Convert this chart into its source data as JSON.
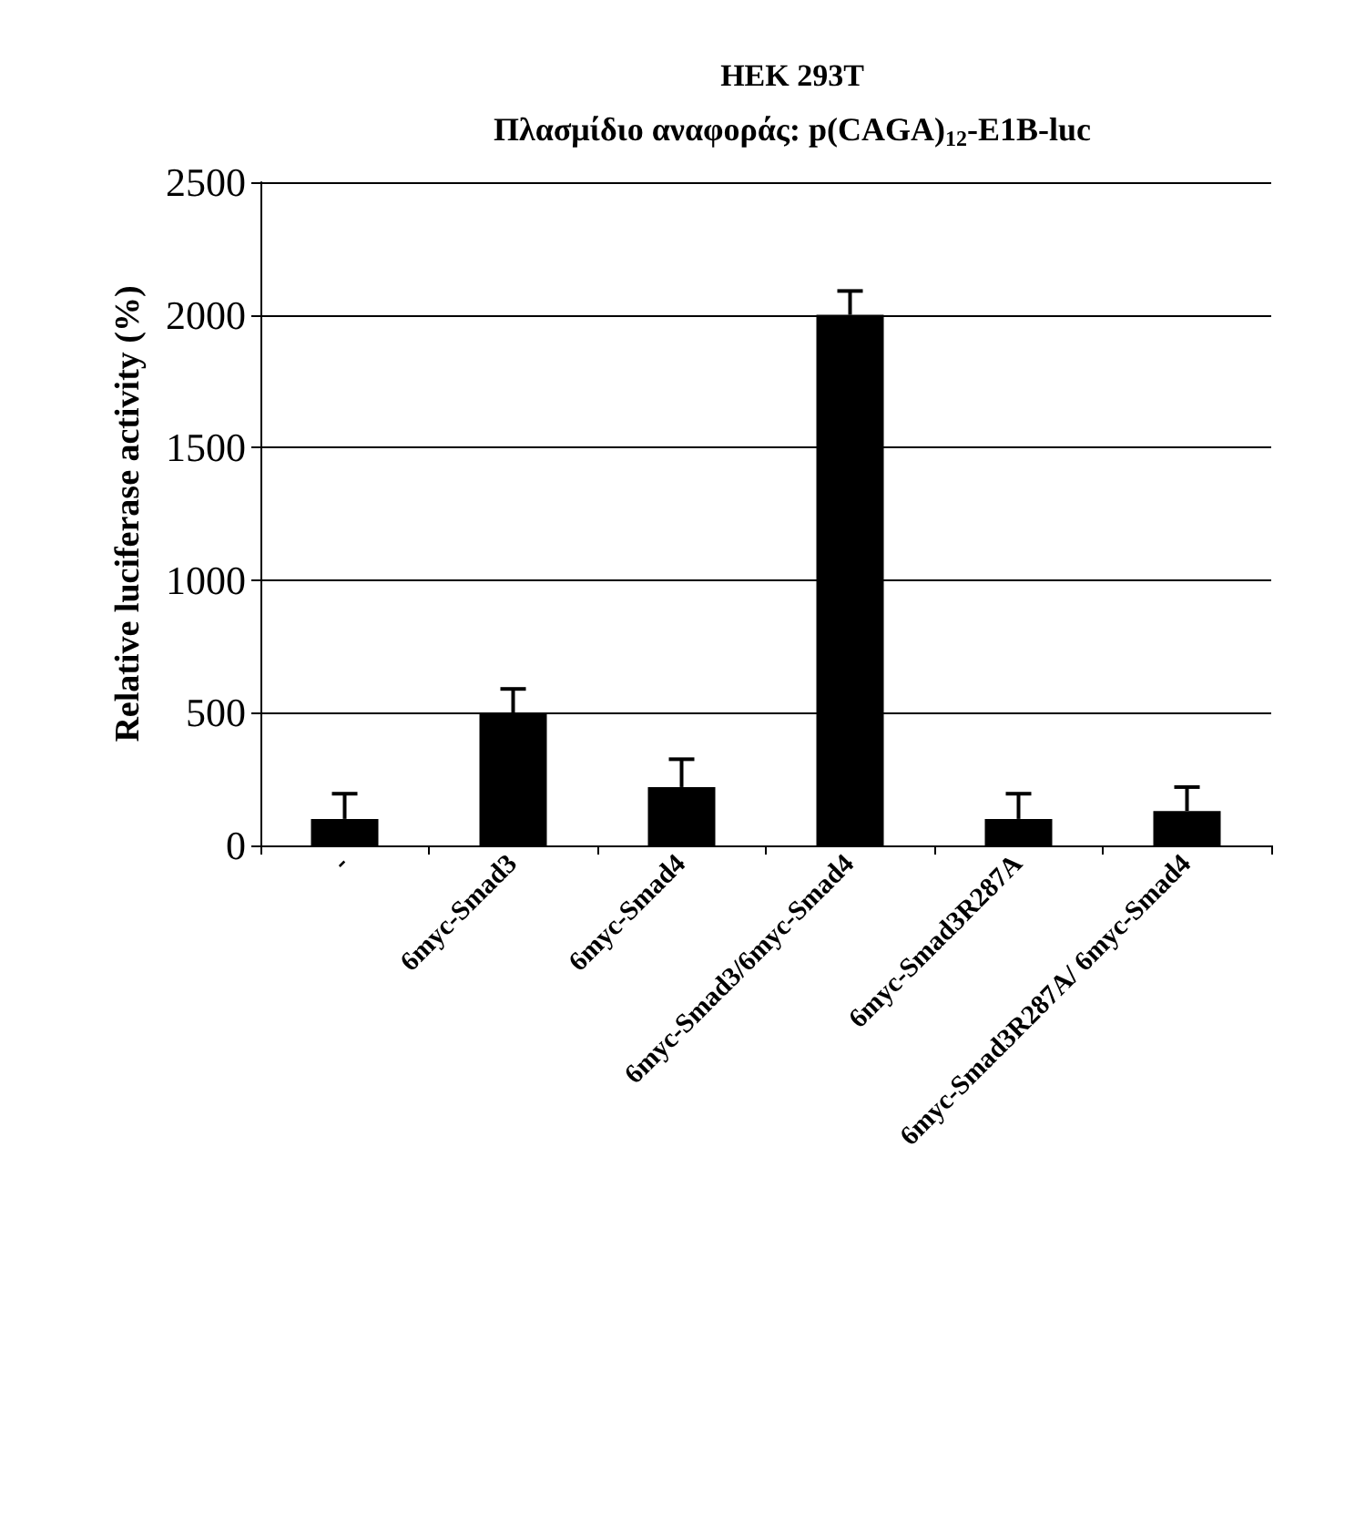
{
  "chart_data": {
    "type": "bar",
    "title": "HEK 293T",
    "subtitle": "Πλασμίδιο αναφοράς: p(CAGA)$_{12}$-E1B-luc",
    "ylabel": "Relative luciferase activity (%)",
    "categories": [
      "-",
      "6myc-Smad3",
      "6myc-Smad4",
      "6myc-Smad3/6myc-Smad4",
      "6myc-Smad3R287A",
      "6myc-Smad3R287A/ 6myc-Smad4"
    ],
    "values": [
      100,
      500,
      220,
      2000,
      100,
      130
    ],
    "errors": [
      [
        100,
        195
      ],
      [
        500,
        590
      ],
      [
        220,
        325
      ],
      [
        2000,
        2090
      ],
      [
        100,
        195
      ],
      [
        130,
        220
      ]
    ],
    "color": "#000000",
    "ylim": [
      0,
      2500
    ],
    "yticks": [
      0,
      500,
      1000,
      1500,
      2000,
      2500
    ],
    "grid": "y"
  }
}
